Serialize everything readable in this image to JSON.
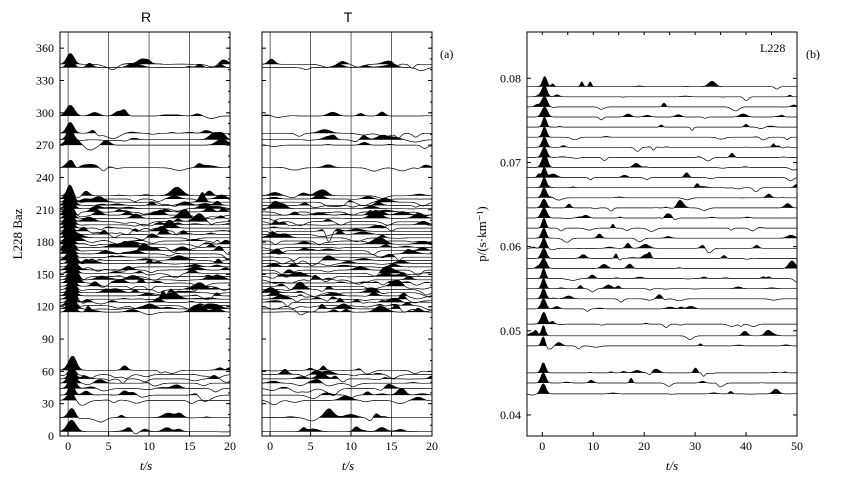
{
  "chart_data": [
    {
      "type": "line",
      "panel_label": "(a)",
      "ylabel": "L228 Baz",
      "yticks": [
        0,
        30,
        60,
        90,
        120,
        150,
        180,
        210,
        240,
        270,
        300,
        330,
        360
      ],
      "ylim": [
        0,
        375
      ],
      "subplots": [
        {
          "title": "R",
          "xlabel": "t/s",
          "xticks": [
            0,
            5,
            10,
            15,
            20
          ],
          "xlim": [
            -1,
            20
          ],
          "vertical_gridlines": [
            0,
            5,
            10,
            15,
            20
          ]
        },
        {
          "title": "T",
          "xlabel": "t/s",
          "xticks": [
            0,
            5,
            10,
            15,
            20
          ],
          "xlim": [
            -1,
            20
          ],
          "vertical_gridlines": [
            0,
            5,
            10,
            15,
            20
          ]
        }
      ],
      "trace_baz": [
        4,
        17,
        33,
        38,
        44,
        49,
        53,
        57,
        61,
        115,
        118,
        121,
        124,
        127,
        130,
        133,
        136,
        139,
        142,
        145,
        148,
        151,
        154,
        157,
        160,
        163,
        166,
        169,
        172,
        175,
        178,
        181,
        184,
        187,
        190,
        193,
        196,
        199,
        202,
        205,
        208,
        211,
        214,
        217,
        220,
        223,
        249,
        270,
        275,
        281,
        297,
        342,
        345
      ]
    },
    {
      "type": "line",
      "panel_label": "(b)",
      "station_label": "L228",
      "ylabel": "p/(s·km⁻¹)",
      "xlabel": "t/s",
      "xticks": [
        0,
        10,
        20,
        30,
        40,
        50
      ],
      "xlim": [
        -3,
        50
      ],
      "yticks": [
        0.04,
        0.05,
        0.06,
        0.07,
        0.08
      ],
      "ylim": [
        0.0375,
        0.0855
      ],
      "trace_p": [
        0.0425,
        0.0438,
        0.045,
        0.0482,
        0.0494,
        0.0508,
        0.0526,
        0.0538,
        0.055,
        0.0562,
        0.0574,
        0.0586,
        0.0598,
        0.061,
        0.0622,
        0.0634,
        0.0646,
        0.0658,
        0.067,
        0.0682,
        0.0694,
        0.0706,
        0.0718,
        0.073,
        0.0742,
        0.0754,
        0.0766,
        0.0778,
        0.079
      ]
    }
  ],
  "labels": {
    "panel_a_title_R": "R",
    "panel_a_title_T": "T",
    "panel_a_ylabel": "L228 Baz",
    "panel_a_tag": "(a)",
    "panel_b_tag": "(b)",
    "panel_b_station": "L228",
    "xlabel": "t/s"
  }
}
